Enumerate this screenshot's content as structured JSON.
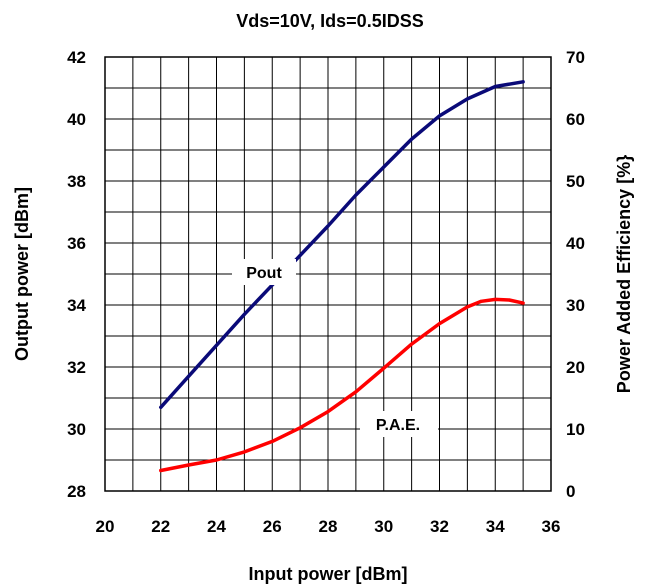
{
  "chart_data": {
    "type": "line",
    "title": "Vds=10V, Ids=0.5IDSS",
    "xlabel": "Input power [dBm]",
    "ylabel": "Output power [dBm]",
    "y2label": "Power Added Efficiency [%}",
    "xlim": [
      20,
      36
    ],
    "ylim": [
      28,
      42
    ],
    "y2lim": [
      0,
      70
    ],
    "x_ticks": [
      "20",
      "22",
      "24",
      "26",
      "28",
      "30",
      "32",
      "34",
      "36"
    ],
    "y_ticks": [
      "28",
      "30",
      "32",
      "34",
      "36",
      "38",
      "40",
      "42"
    ],
    "y2_ticks": [
      "0",
      "10",
      "20",
      "30",
      "40",
      "50",
      "60",
      "70"
    ],
    "grid": true,
    "series": [
      {
        "name": "Pout",
        "axis": "left",
        "color": "#0a0a78",
        "x": [
          22,
          23,
          24,
          25,
          26,
          27,
          28,
          29,
          30,
          31,
          32,
          33,
          34,
          35
        ],
        "y": [
          30.7,
          31.7,
          32.7,
          33.7,
          34.65,
          35.6,
          36.55,
          37.55,
          38.45,
          39.35,
          40.1,
          40.65,
          41.05,
          41.2
        ]
      },
      {
        "name": "P.A.E.",
        "axis": "right",
        "color": "#ff0000",
        "x": [
          22,
          23,
          24,
          25,
          26,
          27,
          28,
          29,
          30,
          31,
          32,
          33,
          33.5,
          34,
          34.5,
          35
        ],
        "y": [
          3.3,
          4.2,
          5.0,
          6.3,
          8.0,
          10.2,
          12.8,
          16.0,
          19.8,
          23.7,
          27.0,
          29.7,
          30.6,
          30.9,
          30.8,
          30.3
        ]
      }
    ],
    "annotations": [
      "Pout",
      "P.A.E."
    ]
  }
}
